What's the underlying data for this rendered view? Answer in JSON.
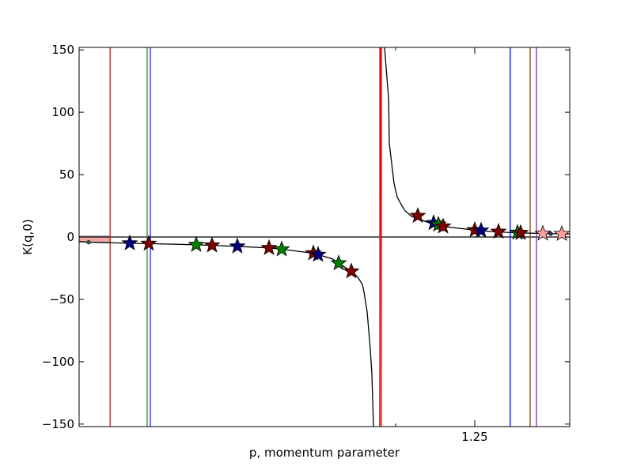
{
  "chart_data": {
    "type": "scatter",
    "title": "",
    "xlabel": "p, momentum parameter",
    "ylabel": "K(q,0)",
    "xlim": [
      0.0,
      1.55
    ],
    "ylim": [
      -152,
      152
    ],
    "x_ticks": [
      {
        "value": 1.25,
        "label": "1.25"
      }
    ],
    "y_ticks": [
      {
        "value": 150,
        "label": "150"
      },
      {
        "value": 100,
        "label": "100"
      },
      {
        "value": 50,
        "label": "50"
      },
      {
        "value": 0,
        "label": "0"
      },
      {
        "value": -50,
        "label": "−50"
      },
      {
        "value": -100,
        "label": "−100"
      },
      {
        "value": -150,
        "label": "−150"
      }
    ],
    "grid": false,
    "legend": "none",
    "curve": {
      "color": "#000000",
      "segments": [
        [
          [
            0.0,
            -3.6
          ],
          [
            0.03,
            -4.2
          ],
          [
            0.16,
            -5.0
          ],
          [
            0.22,
            -5.3
          ],
          [
            0.37,
            -6.2
          ],
          [
            0.42,
            -6.7
          ],
          [
            0.5,
            -7.5
          ],
          [
            0.6,
            -8.8
          ],
          [
            0.64,
            -9.8
          ],
          [
            0.74,
            -13.0
          ],
          [
            0.755,
            -14.2
          ],
          [
            0.8,
            -17.5
          ],
          [
            0.82,
            -21.0
          ],
          [
            0.86,
            -27.5
          ],
          [
            0.88,
            -32.0
          ],
          [
            0.895,
            -38.0
          ],
          [
            0.9,
            -44.0
          ],
          [
            0.91,
            -60.0
          ],
          [
            0.915,
            -75.0
          ],
          [
            0.92,
            -90.0
          ],
          [
            0.925,
            -110.0
          ],
          [
            0.93,
            -152.0
          ]
        ],
        [
          [
            0.965,
            152.0
          ],
          [
            0.978,
            110.0
          ],
          [
            0.98,
            75.0
          ],
          [
            0.995,
            43.0
          ],
          [
            1.005,
            32.0
          ],
          [
            1.02,
            25.0
          ],
          [
            1.03,
            21.0
          ],
          [
            1.05,
            16.5
          ],
          [
            1.11,
            11.0
          ],
          [
            1.15,
            8.5
          ],
          [
            1.25,
            5.5
          ],
          [
            1.31,
            4.2
          ],
          [
            1.39,
            3.3
          ],
          [
            1.5,
            2.6
          ],
          [
            1.55,
            2.4
          ]
        ]
      ]
    },
    "horizontal_line": {
      "y": 0,
      "color": "#000000"
    },
    "vertical_lines": [
      {
        "x": 0.098,
        "color": "#b22222"
      },
      {
        "x": 0.215,
        "color": "#228b22"
      },
      {
        "x": 0.225,
        "color": "#1f1fff"
      },
      {
        "x": 0.95,
        "color": "#ff0000"
      },
      {
        "x": 0.955,
        "color": "#ff0000"
      },
      {
        "x": 1.362,
        "color": "#0000ff"
      },
      {
        "x": 1.425,
        "color": "#8b4513"
      },
      {
        "x": 1.445,
        "color": "#6a3d9a"
      }
    ],
    "red_sloped_line": {
      "points": [
        [
          0.95,
          -152
        ],
        [
          0.953,
          152
        ]
      ],
      "color": "#ff0000"
    },
    "band": {
      "x_from": 0.0,
      "x_to": 0.098,
      "y_from": -4,
      "y_to": 0.8,
      "color": "#f4a7a7"
    },
    "small_markers": [
      {
        "x": 0.03,
        "y": -4.2,
        "color": "#2e6b2e"
      },
      {
        "x": 1.49,
        "y": 2.6,
        "color": "#2e2e6b"
      }
    ],
    "stars": [
      {
        "x": 0.16,
        "y": -5.0,
        "color": "#00007f"
      },
      {
        "x": 0.22,
        "y": -5.3,
        "color": "#7f0000"
      },
      {
        "x": 0.37,
        "y": -6.2,
        "color": "#007f00"
      },
      {
        "x": 0.42,
        "y": -6.7,
        "color": "#7f0000"
      },
      {
        "x": 0.5,
        "y": -7.5,
        "color": "#00007f"
      },
      {
        "x": 0.6,
        "y": -8.8,
        "color": "#7f0000"
      },
      {
        "x": 0.64,
        "y": -9.8,
        "color": "#007f00"
      },
      {
        "x": 0.74,
        "y": -13.0,
        "color": "#7f0000"
      },
      {
        "x": 0.755,
        "y": -14.2,
        "color": "#00007f"
      },
      {
        "x": 0.82,
        "y": -21.0,
        "color": "#007f00"
      },
      {
        "x": 0.86,
        "y": -27.5,
        "color": "#7f0000"
      },
      {
        "x": 1.07,
        "y": 17.0,
        "color": "#7f0000"
      },
      {
        "x": 1.12,
        "y": 11.2,
        "color": "#00007f"
      },
      {
        "x": 1.135,
        "y": 10.0,
        "color": "#007f00"
      },
      {
        "x": 1.15,
        "y": 8.5,
        "color": "#7f0000"
      },
      {
        "x": 1.25,
        "y": 5.6,
        "color": "#7f0000"
      },
      {
        "x": 1.27,
        "y": 5.2,
        "color": "#00007f"
      },
      {
        "x": 1.325,
        "y": 4.3,
        "color": "#7f0000"
      },
      {
        "x": 1.385,
        "y": 3.5,
        "color": "#007f00"
      },
      {
        "x": 1.395,
        "y": 3.3,
        "color": "#7f0000"
      },
      {
        "x": 1.465,
        "y": 2.8,
        "color": "#ff9f9f"
      },
      {
        "x": 1.525,
        "y": 2.5,
        "color": "#ff9f9f"
      }
    ]
  }
}
